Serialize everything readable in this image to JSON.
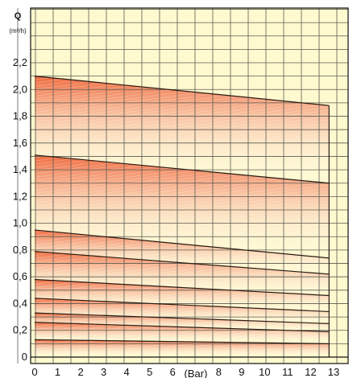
{
  "chart_data": {
    "type": "area",
    "title": "",
    "ylabel": "Q",
    "yunit": "(m³/h)",
    "xlabel": "(Bar)",
    "xlim": [
      0,
      13
    ],
    "ylim": [
      0,
      2.4
    ],
    "x_ticks": [
      0,
      1,
      2,
      3,
      4,
      5,
      6,
      8,
      9,
      10,
      11,
      12,
      13
    ],
    "y_ticks": [
      {
        "v": 0,
        "label": "0"
      },
      {
        "v": 0.2,
        "label": "0,2"
      },
      {
        "v": 0.4,
        "label": "0,4"
      },
      {
        "v": 0.6,
        "label": "0,6"
      },
      {
        "v": 0.8,
        "label": "0,8"
      },
      {
        "v": 1.0,
        "label": "1,0"
      },
      {
        "v": 1.2,
        "label": "1,2"
      },
      {
        "v": 1.4,
        "label": "1,4"
      },
      {
        "v": 1.6,
        "label": "1,6"
      },
      {
        "v": 1.8,
        "label": "1,8"
      },
      {
        "v": 2.0,
        "label": "2,0"
      },
      {
        "v": 2.2,
        "label": "2,2"
      }
    ],
    "grid": true,
    "x_start": 0,
    "x_end": 12.8,
    "bands": [
      {
        "top": [
          2.1,
          1.88
        ],
        "bottom": [
          1.51,
          1.3
        ]
      },
      {
        "top": [
          1.51,
          1.3
        ],
        "bottom": [
          0.95,
          0.74
        ]
      },
      {
        "top": [
          0.95,
          0.74
        ],
        "bottom": [
          0.79,
          0.62
        ]
      },
      {
        "top": [
          0.79,
          0.62
        ],
        "bottom": [
          0.58,
          0.46
        ]
      },
      {
        "top": [
          0.58,
          0.46
        ],
        "bottom": [
          0.44,
          0.34
        ]
      },
      {
        "top": [
          0.44,
          0.34
        ],
        "bottom": [
          0.33,
          0.25
        ]
      },
      {
        "top": [
          0.33,
          0.25
        ],
        "bottom": [
          0.26,
          0.19
        ]
      },
      {
        "top": [
          0.26,
          0.19
        ],
        "bottom": [
          0.13,
          0.1
        ]
      },
      {
        "top": [
          0.13,
          0.1
        ],
        "bottom": [
          0.0,
          0.0
        ]
      }
    ],
    "colors": {
      "background": "#fff9cf",
      "grid": "#5a5a50",
      "band_fill": "#ef6b3f",
      "band_fade": "#ffffff",
      "curve": "#2a1a12",
      "axis": "#111111"
    }
  }
}
